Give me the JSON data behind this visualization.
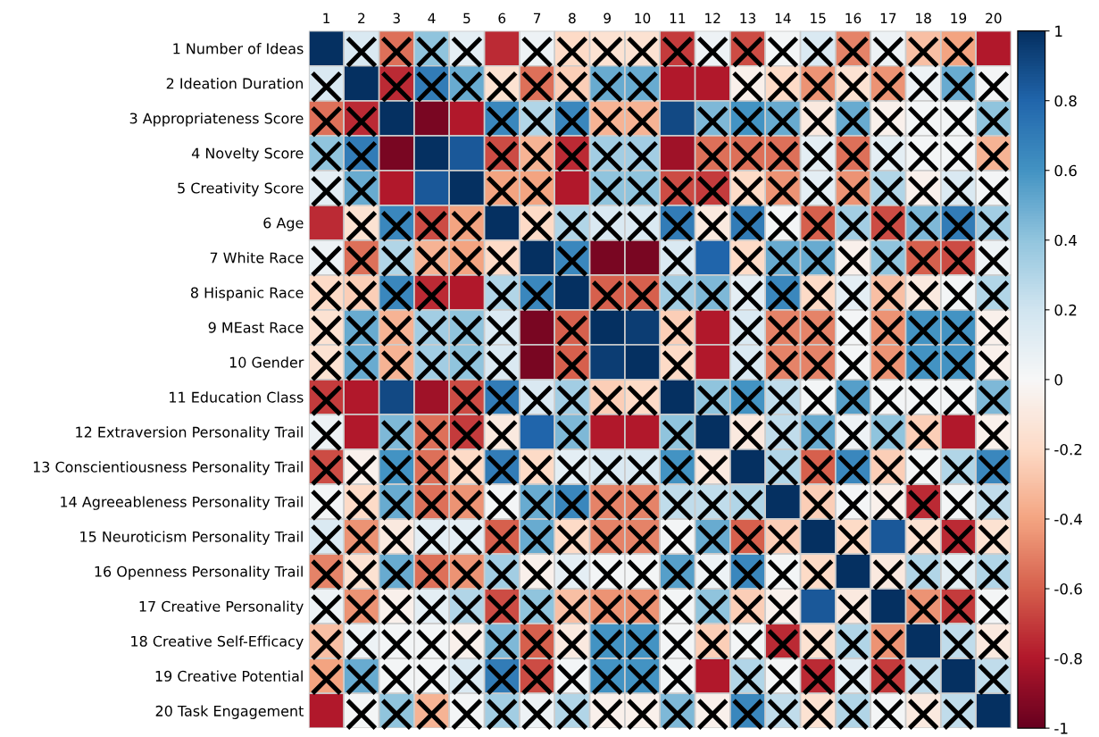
{
  "chart_data": {
    "type": "heatmap",
    "grid": true,
    "clim": [
      -1,
      1
    ],
    "cticks": [
      1,
      0.8,
      0.6,
      0.4,
      0.2,
      0,
      -0.2,
      -0.4,
      -0.6,
      -0.8,
      -1
    ],
    "categories": [
      "1",
      "2",
      "3",
      "4",
      "5",
      "6",
      "7",
      "8",
      "9",
      "10",
      "11",
      "12",
      "13",
      "14",
      "15",
      "16",
      "17",
      "18",
      "19",
      "20"
    ],
    "y_categories": [
      "1 Number of Ideas",
      "2 Ideation Duration",
      "3 Appropriateness Score",
      "4 Novelty Score",
      "5 Creativity Score",
      "6 Age",
      "7 White Race",
      "8 Hispanic Race",
      "9 MEast Race",
      "10 Gender",
      "11 Education Class",
      "12 Extraversion Personality Trail",
      "13 Conscientiousness Personality Trail",
      "14 Agreeableness Personality Trail",
      "15 Neuroticism Personality Trail",
      "16 Openness Personality Trail",
      "17 Creative Personality",
      "18 Creative Self-Efficacy",
      "19 Creative Potential",
      "20 Task Engagement"
    ],
    "cells": [
      [
        1,
        0.15,
        -0.55,
        0.4,
        0.1,
        -0.75,
        0.05,
        -0.2,
        -0.15,
        -0.15,
        -0.7,
        0.05,
        -0.65,
        0.02,
        0.15,
        -0.5,
        0.05,
        -0.3,
        -0.4,
        -0.8
      ],
      [
        0.15,
        1,
        -0.75,
        0.7,
        0.5,
        -0.15,
        -0.55,
        -0.25,
        0.5,
        0.5,
        -0.8,
        -0.8,
        -0.05,
        -0.2,
        -0.45,
        -0.15,
        -0.45,
        0.05,
        0.5,
        0.02
      ],
      [
        -0.55,
        -0.75,
        1,
        -0.95,
        -0.8,
        0.65,
        0.3,
        0.65,
        -0.35,
        -0.35,
        0.9,
        0.45,
        0.6,
        0.5,
        -0.1,
        0.5,
        -0.05,
        0.02,
        0.02,
        0.4
      ],
      [
        0.4,
        0.7,
        -0.95,
        1,
        0.85,
        -0.65,
        -0.35,
        -0.75,
        0.35,
        0.35,
        -0.85,
        -0.55,
        -0.55,
        -0.55,
        0.1,
        -0.55,
        0.1,
        0.02,
        0.02,
        -0.35
      ],
      [
        0.1,
        0.5,
        -0.8,
        0.85,
        1,
        -0.4,
        -0.4,
        -0.8,
        0.4,
        0.4,
        -0.65,
        -0.7,
        -0.2,
        -0.45,
        0.1,
        -0.45,
        0.3,
        -0.05,
        0.15,
        0.02
      ],
      [
        -0.75,
        -0.15,
        0.65,
        -0.65,
        -0.4,
        1,
        -0.2,
        0.3,
        0.15,
        0.15,
        0.7,
        -0.1,
        0.7,
        0.02,
        -0.6,
        0.35,
        -0.65,
        0.45,
        0.7,
        0.35
      ],
      [
        0.05,
        -0.55,
        0.3,
        -0.35,
        -0.4,
        -0.2,
        1,
        0.65,
        -0.95,
        -0.95,
        0.15,
        0.8,
        -0.2,
        0.5,
        0.5,
        -0.05,
        0.4,
        -0.6,
        -0.65,
        0.05
      ],
      [
        -0.2,
        -0.25,
        0.65,
        -0.75,
        -0.8,
        0.3,
        0.65,
        1,
        -0.6,
        -0.6,
        0.35,
        0.45,
        0.1,
        0.65,
        -0.2,
        0.1,
        -0.3,
        -0.1,
        0.02,
        0.3
      ],
      [
        -0.15,
        0.5,
        -0.35,
        0.35,
        0.4,
        0.15,
        -0.95,
        -0.6,
        1,
        0.95,
        -0.25,
        -0.8,
        0.15,
        -0.5,
        -0.5,
        0.02,
        -0.45,
        0.6,
        0.6,
        -0.05
      ],
      [
        -0.15,
        0.5,
        -0.35,
        0.35,
        0.4,
        0.15,
        -0.95,
        -0.6,
        0.95,
        1,
        -0.2,
        -0.8,
        0.15,
        -0.5,
        -0.5,
        0.02,
        -0.45,
        0.6,
        0.6,
        -0.05
      ],
      [
        -0.7,
        -0.8,
        0.9,
        -0.85,
        -0.65,
        0.7,
        0.15,
        0.35,
        -0.25,
        -0.2,
        1,
        0.4,
        0.6,
        0.25,
        0.02,
        0.55,
        0.02,
        0.02,
        0.02,
        0.45
      ],
      [
        0.05,
        -0.8,
        0.45,
        -0.55,
        -0.7,
        -0.1,
        0.8,
        0.45,
        -0.8,
        -0.8,
        0.4,
        1,
        -0.1,
        0.25,
        0.5,
        0.05,
        0.4,
        -0.25,
        -0.8,
        -0.05
      ],
      [
        -0.65,
        -0.05,
        0.6,
        -0.55,
        -0.2,
        0.7,
        -0.2,
        0.1,
        0.15,
        0.15,
        0.6,
        -0.1,
        1,
        0.3,
        -0.6,
        0.65,
        -0.25,
        0.02,
        0.3,
        0.65
      ],
      [
        0.02,
        -0.2,
        0.5,
        -0.55,
        -0.45,
        0.02,
        0.5,
        0.65,
        -0.5,
        -0.5,
        0.25,
        0.25,
        0.3,
        1,
        -0.25,
        0.02,
        -0.05,
        -0.75,
        0.02,
        0.25
      ],
      [
        0.15,
        -0.45,
        -0.1,
        0.1,
        0.1,
        -0.6,
        0.5,
        -0.2,
        -0.5,
        -0.5,
        0.02,
        0.5,
        -0.6,
        -0.25,
        1,
        -0.2,
        0.85,
        -0.15,
        -0.75,
        -0.15
      ],
      [
        -0.5,
        -0.15,
        0.5,
        -0.55,
        -0.45,
        0.35,
        -0.05,
        0.1,
        0.02,
        0.02,
        0.55,
        0.05,
        0.65,
        0.02,
        -0.2,
        1,
        -0.1,
        0.3,
        0.1,
        0.3
      ],
      [
        0.05,
        -0.45,
        -0.05,
        0.1,
        0.3,
        -0.65,
        0.4,
        -0.3,
        -0.45,
        -0.45,
        0.02,
        0.4,
        -0.25,
        -0.05,
        0.85,
        -0.1,
        1,
        -0.45,
        -0.7,
        0.02
      ],
      [
        -0.3,
        0.05,
        0.02,
        0.02,
        -0.05,
        0.45,
        -0.6,
        -0.1,
        0.6,
        0.6,
        0.02,
        -0.25,
        0.02,
        -0.75,
        -0.15,
        0.3,
        -0.45,
        1,
        0.25,
        -0.1
      ],
      [
        -0.4,
        0.5,
        0.02,
        0.02,
        0.15,
        0.7,
        -0.65,
        0.02,
        0.6,
        0.6,
        0.02,
        -0.8,
        0.3,
        0.02,
        -0.75,
        0.1,
        -0.7,
        0.25,
        1,
        0.25
      ],
      [
        -0.8,
        0.02,
        0.4,
        -0.35,
        0.02,
        0.35,
        0.05,
        0.3,
        -0.05,
        -0.05,
        0.45,
        -0.05,
        0.65,
        0.25,
        -0.15,
        0.3,
        0.02,
        -0.1,
        0.25,
        1
      ]
    ],
    "cell_labels": [
      [
        null,
        "×",
        "×",
        "×",
        "×",
        null,
        "×",
        "×",
        "×",
        "×",
        "×",
        "×",
        "×",
        "×",
        "×",
        "×",
        "×",
        "×",
        "×",
        null
      ],
      [
        "×",
        null,
        "×",
        "×",
        "×",
        "×",
        "×",
        "×",
        "×",
        "×",
        null,
        null,
        "×",
        "×",
        "×",
        "×",
        "×",
        "×",
        "×",
        "×"
      ],
      [
        "×",
        "×",
        null,
        null,
        null,
        "×",
        "×",
        "×",
        "×",
        "×",
        null,
        "×",
        "×",
        "×",
        "×",
        "×",
        "×",
        "×",
        "×",
        "×"
      ],
      [
        "×",
        "×",
        null,
        null,
        null,
        "×",
        "×",
        "×",
        "×",
        "×",
        null,
        "×",
        "×",
        "×",
        "×",
        "×",
        "×",
        "×",
        "×",
        "×"
      ],
      [
        "×",
        "×",
        null,
        null,
        null,
        "×",
        "×",
        null,
        "×",
        "×",
        "×",
        "×",
        "×",
        "×",
        "×",
        "×",
        "×",
        "×",
        "×",
        "×"
      ],
      [
        null,
        "×",
        "×",
        "×",
        "×",
        null,
        "×",
        "×",
        "×",
        "×",
        "×",
        "×",
        "×",
        "×",
        "×",
        "×",
        "×",
        "×",
        "×",
        "×"
      ],
      [
        "×",
        "×",
        "×",
        "×",
        "×",
        "×",
        null,
        "×",
        null,
        null,
        "×",
        null,
        "×",
        "×",
        "×",
        "×",
        "×",
        "×",
        "×",
        "×"
      ],
      [
        "×",
        "×",
        "×",
        "×",
        null,
        "×",
        "×",
        null,
        "×",
        "×",
        "×",
        "×",
        "×",
        "×",
        "×",
        "×",
        "×",
        "×",
        "×",
        "×"
      ],
      [
        "×",
        "×",
        "×",
        "×",
        "×",
        "×",
        null,
        "×",
        null,
        null,
        "×",
        null,
        "×",
        "×",
        "×",
        "×",
        "×",
        "×",
        "×",
        "×"
      ],
      [
        "×",
        "×",
        "×",
        "×",
        "×",
        "×",
        null,
        "×",
        null,
        null,
        "×",
        null,
        "×",
        "×",
        "×",
        "×",
        "×",
        "×",
        "×",
        "×"
      ],
      [
        "×",
        null,
        null,
        null,
        "×",
        "×",
        "×",
        "×",
        "×",
        "×",
        null,
        "×",
        "×",
        "×",
        "×",
        "×",
        "×",
        "×",
        "×",
        "×"
      ],
      [
        "×",
        null,
        "×",
        "×",
        "×",
        "×",
        null,
        "×",
        null,
        null,
        "×",
        null,
        "×",
        "×",
        "×",
        "×",
        "×",
        "×",
        null,
        "×"
      ],
      [
        "×",
        "×",
        "×",
        "×",
        "×",
        "×",
        "×",
        "×",
        "×",
        "×",
        "×",
        "×",
        null,
        "×",
        "×",
        "×",
        "×",
        "×",
        "×",
        "×"
      ],
      [
        "×",
        "×",
        "×",
        "×",
        "×",
        "×",
        "×",
        "×",
        "×",
        "×",
        "×",
        "×",
        "×",
        null,
        "×",
        "×",
        "×",
        "×",
        "×",
        "×"
      ],
      [
        "×",
        "×",
        "×",
        "×",
        "×",
        "×",
        "×",
        "×",
        "×",
        "×",
        "×",
        "×",
        "×",
        "×",
        null,
        "×",
        null,
        "×",
        "×",
        "×"
      ],
      [
        "×",
        "×",
        "×",
        "×",
        "×",
        "×",
        "×",
        "×",
        "×",
        "×",
        "×",
        "×",
        "×",
        "×",
        "×",
        null,
        "×",
        "×",
        "×",
        "×"
      ],
      [
        "×",
        "×",
        "×",
        "×",
        "×",
        "×",
        "×",
        "×",
        "×",
        "×",
        "×",
        "×",
        "×",
        "×",
        null,
        "×",
        null,
        "×",
        "×",
        "×"
      ],
      [
        "×",
        "×",
        "×",
        "×",
        "×",
        "×",
        "×",
        "×",
        "×",
        "×",
        "×",
        "×",
        "×",
        "×",
        "×",
        "×",
        "×",
        null,
        "×",
        "×"
      ],
      [
        "×",
        "×",
        "×",
        "×",
        "×",
        "×",
        "×",
        "×",
        "×",
        "×",
        "×",
        null,
        "×",
        "×",
        "×",
        "×",
        "×",
        "×",
        null,
        "×"
      ],
      [
        null,
        "×",
        "×",
        "×",
        "×",
        "×",
        "×",
        "×",
        "×",
        "×",
        "×",
        "×",
        "×",
        "×",
        "×",
        "×",
        "×",
        "×",
        "×",
        null
      ]
    ]
  }
}
